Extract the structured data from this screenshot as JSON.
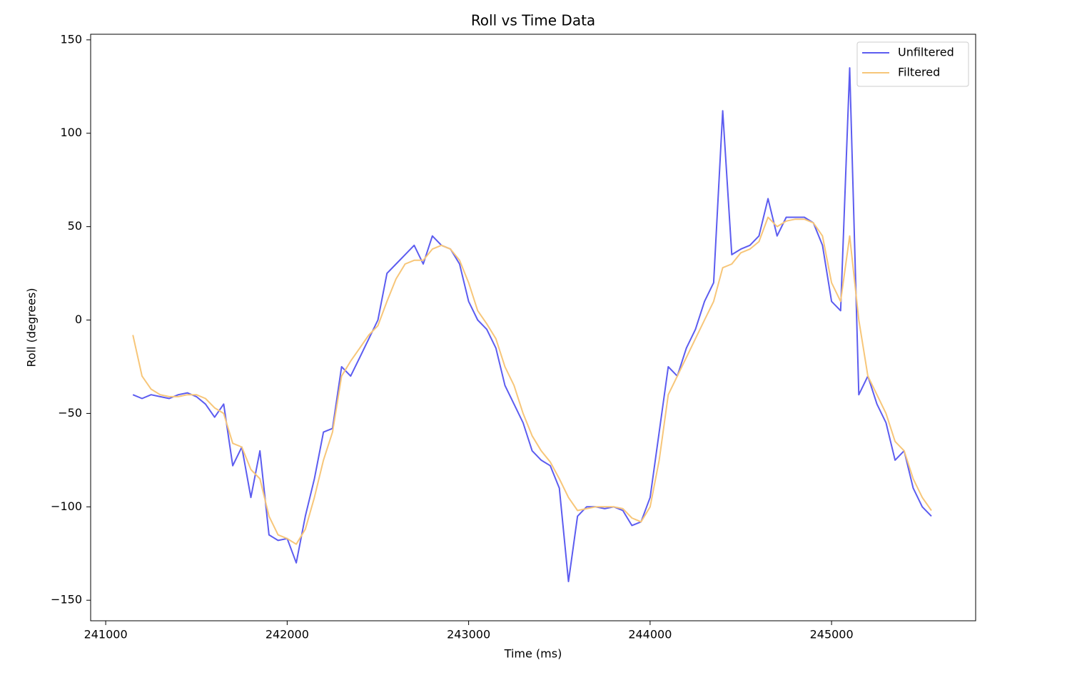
{
  "chart_data": {
    "type": "line",
    "title": "Roll vs Time Data",
    "x_label": "Time (ms)",
    "y_label": "Roll (degrees)",
    "x": [
      241150,
      241200,
      241250,
      241300,
      241350,
      241400,
      241450,
      241500,
      241550,
      241600,
      241650,
      241700,
      241750,
      241800,
      241850,
      241900,
      241950,
      242000,
      242050,
      242100,
      242150,
      242200,
      242250,
      242300,
      242350,
      242400,
      242450,
      242500,
      242550,
      242600,
      242650,
      242700,
      242750,
      242800,
      242850,
      242900,
      242950,
      243000,
      243050,
      243100,
      243150,
      243200,
      243250,
      243300,
      243350,
      243400,
      243450,
      243500,
      243550,
      243600,
      243650,
      243700,
      243750,
      243800,
      243850,
      243900,
      243950,
      244000,
      244050,
      244100,
      244150,
      244200,
      244250,
      244300,
      244350,
      244400,
      244450,
      244500,
      244550,
      244600,
      244650,
      244700,
      244750,
      244800,
      244850,
      244900,
      244950,
      245000,
      245050,
      245100,
      245150,
      245200,
      245250,
      245300,
      245350,
      245400,
      245450,
      245500,
      245550
    ],
    "series": [
      {
        "name": "Unfiltered",
        "color": "#5c5cf0",
        "values": [
          -40,
          -42,
          -40,
          -41,
          -42,
          -40,
          -39,
          -41,
          -45,
          -52,
          -45,
          -78,
          -68,
          -95,
          -70,
          -115,
          -118,
          -117,
          -130,
          -105,
          -85,
          -60,
          -58,
          -25,
          -30,
          -20,
          -10,
          0,
          25,
          30,
          35,
          40,
          30,
          45,
          40,
          38,
          30,
          10,
          0,
          -5,
          -15,
          -35,
          -45,
          -55,
          -70,
          -75,
          -78,
          -90,
          -140,
          -105,
          -100,
          -100,
          -101,
          -100,
          -102,
          -110,
          -108,
          -95,
          -60,
          -25,
          -30,
          -15,
          -5,
          10,
          20,
          112,
          35,
          38,
          40,
          45,
          65,
          45,
          55,
          55,
          55,
          52,
          40,
          10,
          5,
          135,
          -40,
          -30,
          -45,
          -55,
          -75,
          -70,
          -90,
          -100,
          -105
        ]
      },
      {
        "name": "Filtered",
        "color": "#f7c679",
        "values": [
          -8,
          -30,
          -37,
          -40,
          -41,
          -41,
          -40,
          -40,
          -42,
          -47,
          -50,
          -66,
          -68,
          -80,
          -85,
          -105,
          -115,
          -117,
          -120,
          -112,
          -95,
          -75,
          -60,
          -30,
          -22,
          -15,
          -8,
          -3,
          10,
          22,
          30,
          32,
          32,
          38,
          40,
          38,
          32,
          20,
          5,
          -2,
          -10,
          -25,
          -35,
          -50,
          -62,
          -70,
          -76,
          -85,
          -95,
          -102,
          -101,
          -100,
          -100,
          -100,
          -101,
          -106,
          -108,
          -100,
          -75,
          -40,
          -30,
          -20,
          -10,
          0,
          10,
          28,
          30,
          36,
          38,
          42,
          55,
          50,
          53,
          54,
          54,
          52,
          45,
          20,
          10,
          45,
          0,
          -30,
          -40,
          -50,
          -65,
          -70,
          -85,
          -95,
          -102
        ]
      }
    ],
    "xlim": [
      240917,
      245794
    ],
    "ylim": [
      -161,
      153
    ],
    "xticks": [
      241000,
      242000,
      243000,
      244000,
      245000
    ],
    "yticks": [
      {
        "value": -150,
        "label": "−150"
      },
      {
        "value": -100,
        "label": "−100"
      },
      {
        "value": -50,
        "label": "−50"
      },
      0,
      50,
      100,
      150
    ],
    "legend": "upper right",
    "grid": false
  }
}
